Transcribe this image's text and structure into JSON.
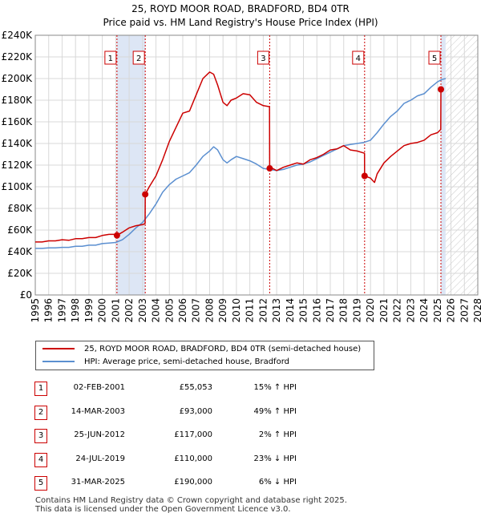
{
  "title": {
    "line1": "25, ROYD MOOR ROAD, BRADFORD, BD4 0TR",
    "line2": "Price paid vs. HM Land Registry's House Price Index (HPI)"
  },
  "legend": {
    "property_label": "25, ROYD MOOR ROAD, BRADFORD, BD4 0TR (semi-detached house)",
    "hpi_label": "HPI: Average price, semi-detached house, Bradford"
  },
  "colors": {
    "property": "#cc0000",
    "hpi": "#5b8fd0",
    "shade": "#dde6f5",
    "grid": "#d8d8d8",
    "vline": "#cc0000"
  },
  "sales": [
    {
      "num": "1",
      "date": "02-FEB-2001",
      "price": "£55,053",
      "hpi": "15% ↑ HPI"
    },
    {
      "num": "2",
      "date": "14-MAR-2003",
      "price": "£93,000",
      "hpi": "49% ↑ HPI"
    },
    {
      "num": "3",
      "date": "25-JUN-2012",
      "price": "£117,000",
      "hpi": "2% ↑ HPI"
    },
    {
      "num": "4",
      "date": "24-JUL-2019",
      "price": "£110,000",
      "hpi": "23% ↓ HPI"
    },
    {
      "num": "5",
      "date": "31-MAR-2025",
      "price": "£190,000",
      "hpi": "6% ↓ HPI"
    }
  ],
  "footer": {
    "line1": "Contains HM Land Registry data © Crown copyright and database right 2025.",
    "line2": "This data is licensed under the Open Government Licence v3.0."
  },
  "chart_data": {
    "type": "line",
    "title": "25, ROYD MOOR ROAD, BRADFORD, BD4 0TR",
    "subtitle": "Price paid vs. HM Land Registry's House Price Index (HPI)",
    "xlim": [
      1995,
      2028
    ],
    "ylim": [
      0,
      240000
    ],
    "x_ticks": [
      1995,
      1996,
      1997,
      1998,
      1999,
      2000,
      2001,
      2002,
      2003,
      2004,
      2005,
      2006,
      2007,
      2008,
      2009,
      2010,
      2011,
      2012,
      2013,
      2014,
      2015,
      2016,
      2017,
      2018,
      2019,
      2020,
      2021,
      2022,
      2023,
      2024,
      2025,
      2026,
      2027,
      2028
    ],
    "y_ticks": [
      {
        "value": 0,
        "label": "£0"
      },
      {
        "value": 20000,
        "label": "£20K"
      },
      {
        "value": 40000,
        "label": "£40K"
      },
      {
        "value": 60000,
        "label": "£60K"
      },
      {
        "value": 80000,
        "label": "£80K"
      },
      {
        "value": 100000,
        "label": "£100K"
      },
      {
        "value": 120000,
        "label": "£120K"
      },
      {
        "value": 140000,
        "label": "£140K"
      },
      {
        "value": 160000,
        "label": "£160K"
      },
      {
        "value": 180000,
        "label": "£180K"
      },
      {
        "value": 200000,
        "label": "£200K"
      },
      {
        "value": 220000,
        "label": "£220K"
      },
      {
        "value": 240000,
        "label": "£240K"
      }
    ],
    "shaded_spans": [
      [
        2001.09,
        2003.2
      ],
      [
        2025.25,
        2025.6
      ]
    ],
    "future_hatch_from": 2025.6,
    "series": [
      {
        "name": "25, ROYD MOOR ROAD, BRADFORD, BD4 0TR (semi-detached house)",
        "x": [
          1995,
          1995.5,
          1996,
          1996.5,
          1997,
          1997.5,
          1998,
          1998.5,
          1999,
          1999.5,
          2000,
          2000.5,
          2001.08,
          2001.09,
          2001.5,
          2002,
          2002.5,
          2003.0,
          2003.19,
          2003.2,
          2003.5,
          2004,
          2004.5,
          2005,
          2005.5,
          2006,
          2006.5,
          2007,
          2007.5,
          2008,
          2008.3,
          2008.6,
          2009,
          2009.3,
          2009.6,
          2010,
          2010.5,
          2011,
          2011.5,
          2012,
          2012.47,
          2012.48,
          2012.7,
          2013,
          2013.5,
          2014,
          2014.5,
          2015,
          2015.5,
          2016,
          2016.5,
          2017,
          2017.5,
          2018,
          2018.5,
          2019,
          2019.55,
          2019.56,
          2020,
          2020.3,
          2020.5,
          2021,
          2021.5,
          2022,
          2022.5,
          2023,
          2023.5,
          2024,
          2024.5,
          2025.0,
          2025.24,
          2025.25,
          2025.4
        ],
        "y": [
          49000,
          49000,
          50000,
          50000,
          51000,
          50500,
          52000,
          52000,
          53000,
          53000,
          55000,
          56000,
          56000,
          55053,
          58000,
          62000,
          64000,
          65000,
          66000,
          93000,
          100000,
          110000,
          125000,
          142000,
          155000,
          168000,
          170000,
          185000,
          200000,
          206000,
          204000,
          194000,
          178000,
          175000,
          180000,
          182000,
          186000,
          185000,
          178000,
          175000,
          174000,
          117000,
          117000,
          115000,
          118000,
          120000,
          122000,
          121000,
          125000,
          127000,
          130000,
          134000,
          135000,
          138000,
          134000,
          133000,
          131000,
          110000,
          108000,
          104000,
          112000,
          122000,
          128000,
          133000,
          138000,
          140000,
          141000,
          143000,
          148000,
          150000,
          153000,
          190000,
          189000
        ]
      },
      {
        "name": "HPI: Average price, semi-detached house, Bradford",
        "x": [
          1995,
          1995.5,
          1996,
          1996.5,
          1997,
          1997.5,
          1998,
          1998.5,
          1999,
          1999.5,
          2000,
          2000.5,
          2001,
          2001.5,
          2002,
          2002.5,
          2003,
          2003.5,
          2004,
          2004.5,
          2005,
          2005.5,
          2006,
          2006.5,
          2007,
          2007.5,
          2008,
          2008.3,
          2008.6,
          2009,
          2009.3,
          2009.6,
          2010,
          2010.5,
          2011,
          2011.5,
          2012,
          2012.5,
          2013,
          2013.5,
          2014,
          2014.5,
          2015,
          2015.5,
          2016,
          2016.5,
          2017,
          2017.5,
          2018,
          2018.5,
          2019,
          2019.5,
          2020,
          2020.5,
          2021,
          2021.5,
          2022,
          2022.5,
          2023,
          2023.5,
          2024,
          2024.5,
          2025,
          2025.3,
          2025.6
        ],
        "y": [
          43000,
          43000,
          43500,
          43500,
          44000,
          44000,
          45000,
          45000,
          46000,
          46000,
          47500,
          48000,
          48500,
          51000,
          56000,
          62000,
          67000,
          75000,
          84000,
          95000,
          102000,
          107000,
          110000,
          113000,
          120000,
          128000,
          133000,
          137000,
          134000,
          125000,
          122000,
          125000,
          128000,
          126000,
          124000,
          121000,
          117000,
          116000,
          115000,
          116000,
          118000,
          120000,
          121000,
          123000,
          126000,
          129000,
          132000,
          135000,
          138000,
          139000,
          140000,
          141000,
          143000,
          150000,
          158000,
          165000,
          170000,
          177000,
          180000,
          184000,
          186000,
          192000,
          197000,
          199000,
          200000
        ]
      }
    ],
    "sale_points": [
      {
        "label": "1",
        "x": 2001.09,
        "y": 55053
      },
      {
        "label": "2",
        "x": 2003.2,
        "y": 93000
      },
      {
        "label": "3",
        "x": 2012.48,
        "y": 117000
      },
      {
        "label": "4",
        "x": 2019.56,
        "y": 110000
      },
      {
        "label": "5",
        "x": 2025.25,
        "y": 190000
      }
    ]
  }
}
